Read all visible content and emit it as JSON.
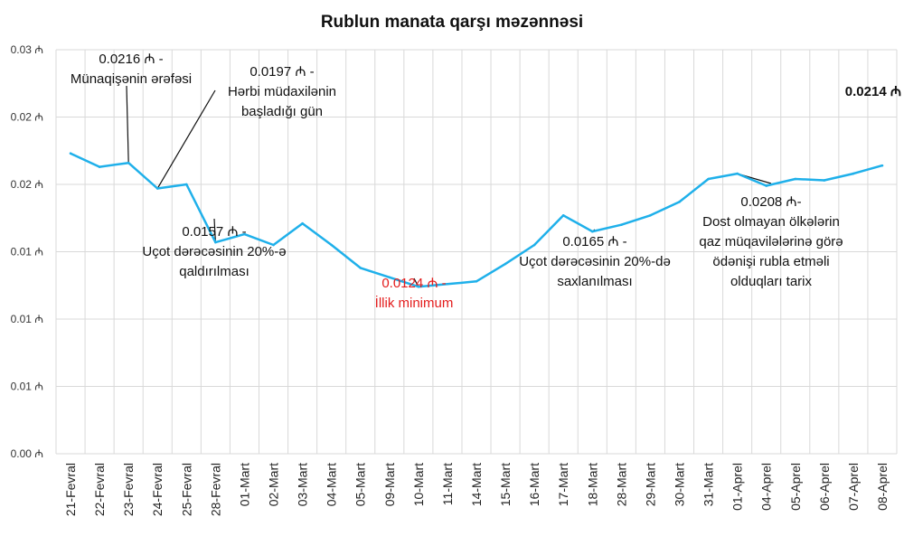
{
  "chart_data": {
    "type": "line",
    "title": "Rublun manata qarşı məzənnəsi",
    "xlabel": "",
    "ylabel": "",
    "currency_symbol": "₼",
    "ylim": [
      0,
      0.03
    ],
    "y_tick_labels": [
      "0.00 ₼",
      "0.01 ₼",
      "0.01 ₼",
      "0.01 ₼",
      "0.02 ₼",
      "0.02 ₼",
      "0.03 ₼"
    ],
    "grid": true,
    "legend": "none",
    "categories": [
      "21-Fevral",
      "22-Fevral",
      "23-Fevral",
      "24-Fevral",
      "25-Fevral",
      "28-Fevral",
      "01-Mart",
      "02-Mart",
      "03-Mart",
      "04-Mart",
      "05-Mart",
      "09-Mart",
      "10-Mart",
      "11-Mart",
      "14-Mart",
      "15-Mart",
      "16-Mart",
      "17-Mart",
      "18-Mart",
      "28-Mart",
      "29-Mart",
      "30-Mart",
      "31-Mart",
      "01-Aprel",
      "04-Aprel",
      "05-Aprel",
      "06-Aprel",
      "07-Aprel",
      "08-Aprel"
    ],
    "series": [
      {
        "name": "",
        "color": "#1fb0ea",
        "values": [
          0.0223,
          0.0213,
          0.0216,
          0.0197,
          0.02,
          0.0157,
          0.0163,
          0.0155,
          0.0171,
          0.0155,
          0.0138,
          0.0131,
          0.0124,
          0.0126,
          0.0128,
          0.0141,
          0.0155,
          0.0177,
          0.0165,
          0.017,
          0.0177,
          0.0187,
          0.0204,
          0.0208,
          0.0199,
          0.0204,
          0.0203,
          0.0208,
          0.0214
        ]
      }
    ],
    "annotations": [
      {
        "category_index": 2,
        "lines": [
          "0.0216 ₼ -",
          "Münaqişənin ərəfəsi"
        ],
        "style": "normal"
      },
      {
        "category_index": 3,
        "lines": [
          "0.0197 ₼ -",
          "Hərbi müdaxilənin",
          "başladığı gün"
        ],
        "style": "normal"
      },
      {
        "category_index": 5,
        "lines": [
          "0.0157 ₼ -",
          "Uçot dərəcəsinin 20%-ə",
          "qaldırılması"
        ],
        "style": "normal"
      },
      {
        "category_index": 12,
        "lines": [
          "0.0124 ₼ -",
          "İllik minimum"
        ],
        "style": "red"
      },
      {
        "category_index": 18,
        "lines": [
          "0.0165 ₼ -",
          "Uçot dərəcəsinin 20%-də",
          "saxlanılması"
        ],
        "style": "normal"
      },
      {
        "category_index": 23,
        "lines": [
          "0.0208 ₼-",
          "Dost olmayan ölkələrin",
          "qaz müqavilələrinə görə",
          "ödənişi rubla etməli",
          "olduqları tarix"
        ],
        "style": "normal"
      },
      {
        "category_index": 28,
        "lines": [
          "0.0214 ₼"
        ],
        "style": "bold"
      }
    ]
  }
}
